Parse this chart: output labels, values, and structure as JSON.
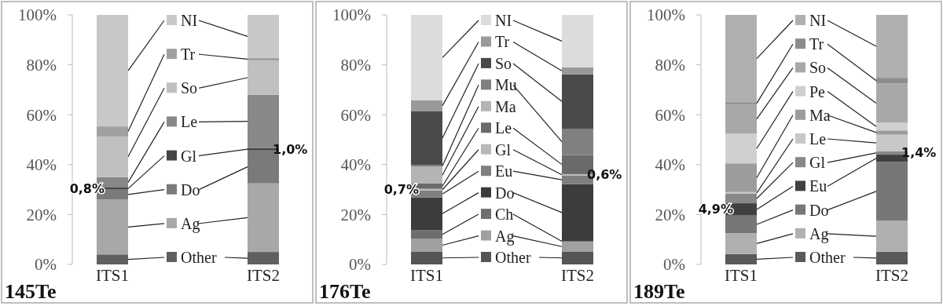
{
  "chart_data": [
    {
      "type": "bar",
      "title": "145Te",
      "categories": [
        "ITS1",
        "ITS2"
      ],
      "stacked": true,
      "ylim": [
        0,
        100
      ],
      "yticks": [
        {
          "value": 0,
          "label": "0%"
        },
        {
          "value": 20,
          "label": "20%"
        },
        {
          "value": 40,
          "label": "40%"
        },
        {
          "value": 60,
          "label": "60%"
        },
        {
          "value": 80,
          "label": "80%"
        },
        {
          "value": 100,
          "label": "100%"
        }
      ],
      "legend": "center",
      "series": [
        {
          "name": "Other",
          "color": "#606060",
          "values": [
            4,
            5
          ]
        },
        {
          "name": "Ag",
          "color": "#a8a8a8",
          "values": [
            22,
            27.5
          ]
        },
        {
          "name": "Do",
          "color": "#7a7a7a",
          "values": [
            4,
            13.2
          ]
        },
        {
          "name": "Gl",
          "color": "#444444",
          "values": [
            0.8,
            1.0
          ],
          "value_labels": [
            "0,8%",
            "1,0%"
          ]
        },
        {
          "name": "Le",
          "color": "#888888",
          "values": [
            4.2,
            21.3
          ]
        },
        {
          "name": "So",
          "color": "#c0c0c0",
          "values": [
            16.3,
            13.7
          ]
        },
        {
          "name": "Tr",
          "color": "#a0a0a0",
          "values": [
            4,
            1.1
          ]
        },
        {
          "name": "NI",
          "color": "#c8c8c8",
          "values": [
            44.7,
            17.2
          ]
        }
      ]
    },
    {
      "type": "bar",
      "title": "176Te",
      "categories": [
        "ITS1",
        "ITS2"
      ],
      "stacked": true,
      "ylim": [
        0,
        100
      ],
      "yticks": [
        {
          "value": 0,
          "label": "0%"
        },
        {
          "value": 20,
          "label": "20%"
        },
        {
          "value": 40,
          "label": "40%"
        },
        {
          "value": 60,
          "label": "60%"
        },
        {
          "value": 80,
          "label": "80%"
        },
        {
          "value": 100,
          "label": "100%"
        }
      ],
      "legend": "center",
      "series": [
        {
          "name": "Other",
          "color": "#555555",
          "values": [
            5.2,
            5.2
          ]
        },
        {
          "name": "Ag",
          "color": "#a0a0a0",
          "values": [
            5,
            3.9
          ]
        },
        {
          "name": "Ch",
          "color": "#6e6e6e",
          "values": [
            3.6,
            0.3
          ]
        },
        {
          "name": "Do",
          "color": "#3c3c3c",
          "values": [
            13.1,
            22.8
          ]
        },
        {
          "name": "Eu",
          "color": "#7f7f7f",
          "values": [
            2.7,
            3.4
          ]
        },
        {
          "name": "Gl",
          "color": "#b8b8b8",
          "values": [
            0.7,
            0.6
          ],
          "value_labels": [
            "0,7%",
            "0,6%"
          ]
        },
        {
          "name": "Le",
          "color": "#6a6a6a",
          "values": [
            2.1,
            7.7
          ]
        },
        {
          "name": "Ma",
          "color": "#b4b4b4",
          "values": [
            6.8,
            null
          ]
        },
        {
          "name": "Mu",
          "color": "#808080",
          "values": [
            0.6,
            10.5
          ]
        },
        {
          "name": "So",
          "color": "#4a4a4a",
          "values": [
            21.7,
            21.8
          ]
        },
        {
          "name": "Tr",
          "color": "#9a9a9a",
          "values": [
            4.3,
            2.8
          ]
        },
        {
          "name": "NI",
          "color": "#dcdcdc",
          "values": [
            34.2,
            21
          ]
        }
      ]
    },
    {
      "type": "bar",
      "title": "189Te",
      "categories": [
        "ITS1",
        "ITS2"
      ],
      "stacked": true,
      "ylim": [
        0,
        100
      ],
      "yticks": [
        {
          "value": 0,
          "label": "0%"
        },
        {
          "value": 20,
          "label": "20%"
        },
        {
          "value": 40,
          "label": "40%"
        },
        {
          "value": 60,
          "label": "60%"
        },
        {
          "value": 80,
          "label": "80%"
        },
        {
          "value": 100,
          "label": "100%"
        }
      ],
      "legend": "center",
      "series": [
        {
          "name": "Other",
          "color": "#5a5a5a",
          "values": [
            4.2,
            5.1
          ]
        },
        {
          "name": "Ag",
          "color": "#b0b0b0",
          "values": [
            8.3,
            12.4
          ]
        },
        {
          "name": "Do",
          "color": "#777777",
          "values": [
            7.1,
            23.6
          ]
        },
        {
          "name": "Eu",
          "color": "#404040",
          "values": [
            4.9,
            2.9
          ],
          "value_labels": [
            "4,9%",
            null
          ]
        },
        {
          "name": "Gl",
          "color": "#888888",
          "values": [
            3.8,
            1.4
          ],
          "value_labels": [
            null,
            "1,4%"
          ]
        },
        {
          "name": "Le",
          "color": "#c8c8c8",
          "values": [
            0.7,
            6.6
          ]
        },
        {
          "name": "Ma",
          "color": "#9c9c9c",
          "values": [
            11.5,
            1.7
          ]
        },
        {
          "name": "Pe",
          "color": "#d0d0d0",
          "values": [
            11.9,
            3.1
          ]
        },
        {
          "name": "So",
          "color": "#a8a8a8",
          "values": [
            11.8,
            15.7
          ]
        },
        {
          "name": "Tr",
          "color": "#8c8c8c",
          "values": [
            0.8,
            2.3
          ]
        },
        {
          "name": "NI",
          "color": "#b0b0b0",
          "values": [
            35,
            25.2
          ]
        }
      ]
    }
  ]
}
